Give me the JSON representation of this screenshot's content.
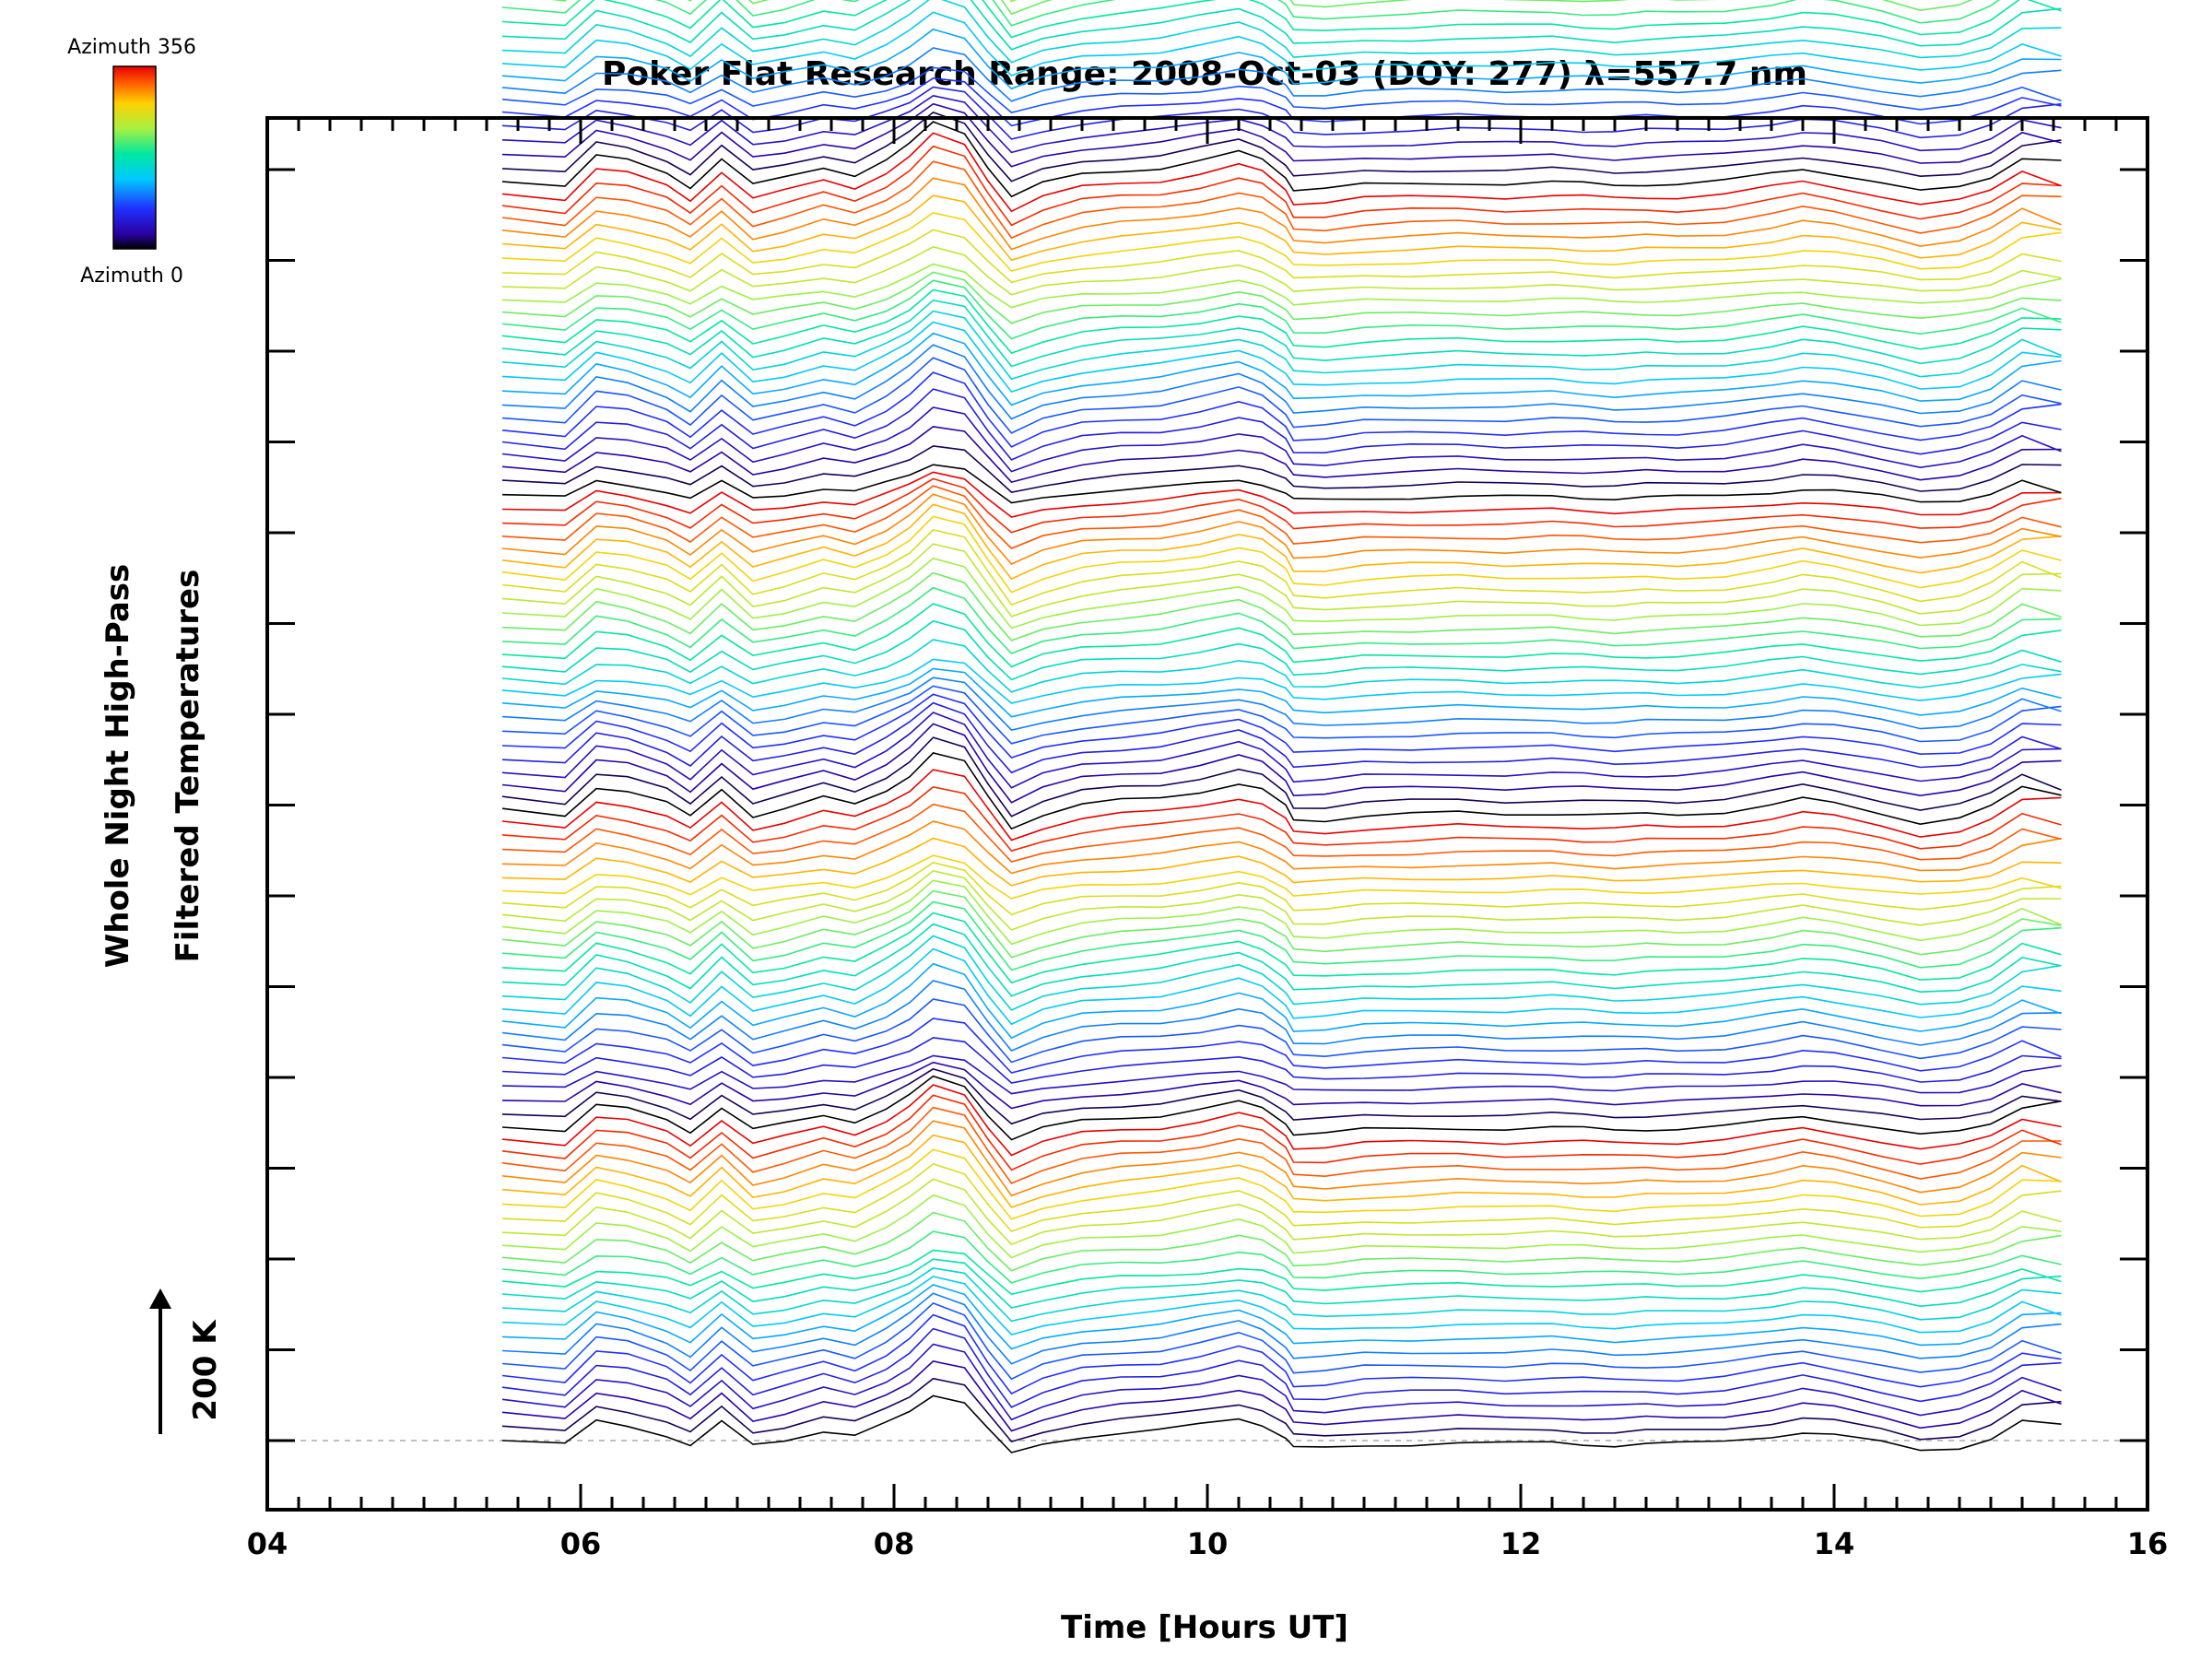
{
  "chart_data": {
    "type": "line",
    "title": "Poker Flat Research Range: 2008-Oct-03 (DOY: 277) λ=557.7 nm",
    "xlabel": "Time [Hours UT]",
    "ylabel_lines": [
      "Whole Night High-Pass",
      "Filtered Temperatures"
    ],
    "scale_bar": {
      "label": "200 K",
      "value_K": 200
    },
    "colorbar": {
      "top_label": "Azimuth 356",
      "bottom_label": "Azimuth 0",
      "colormap": "rainbow"
    },
    "xlim": [
      4,
      16
    ],
    "xticks": [
      "04",
      "06",
      "08",
      "10",
      "12",
      "14",
      "16"
    ],
    "series_count": 145,
    "azimuth_range": [
      0,
      356
    ],
    "series_offset_K": 19,
    "layout_note_omitted": true,
    "grid": false,
    "baseline_dashed": true,
    "time_hours": [
      5.5,
      5.9,
      6.1,
      6.3,
      6.55,
      6.7,
      6.9,
      7.1,
      7.3,
      7.55,
      7.75,
      7.95,
      8.1,
      8.25,
      8.45,
      8.6,
      8.75,
      8.95,
      9.2,
      9.45,
      9.7,
      9.95,
      10.2,
      10.35,
      10.5,
      10.55,
      10.75,
      11.0,
      11.3,
      11.6,
      11.9,
      12.2,
      12.4,
      12.6,
      12.8,
      13.0,
      13.3,
      13.6,
      13.8,
      14.0,
      14.3,
      14.55,
      14.8,
      15.0,
      15.2,
      15.45
    ],
    "mean_profile_K": [
      0,
      -8,
      35,
      28,
      10,
      -10,
      32,
      -8,
      2,
      18,
      8,
      30,
      52,
      84,
      70,
      20,
      -25,
      -6,
      8,
      14,
      18,
      28,
      40,
      30,
      5,
      -14,
      -14,
      -8,
      -6,
      -4,
      -6,
      -4,
      -6,
      -8,
      -6,
      -6,
      -2,
      8,
      16,
      10,
      -4,
      -18,
      -12,
      4,
      34,
      26
    ]
  }
}
